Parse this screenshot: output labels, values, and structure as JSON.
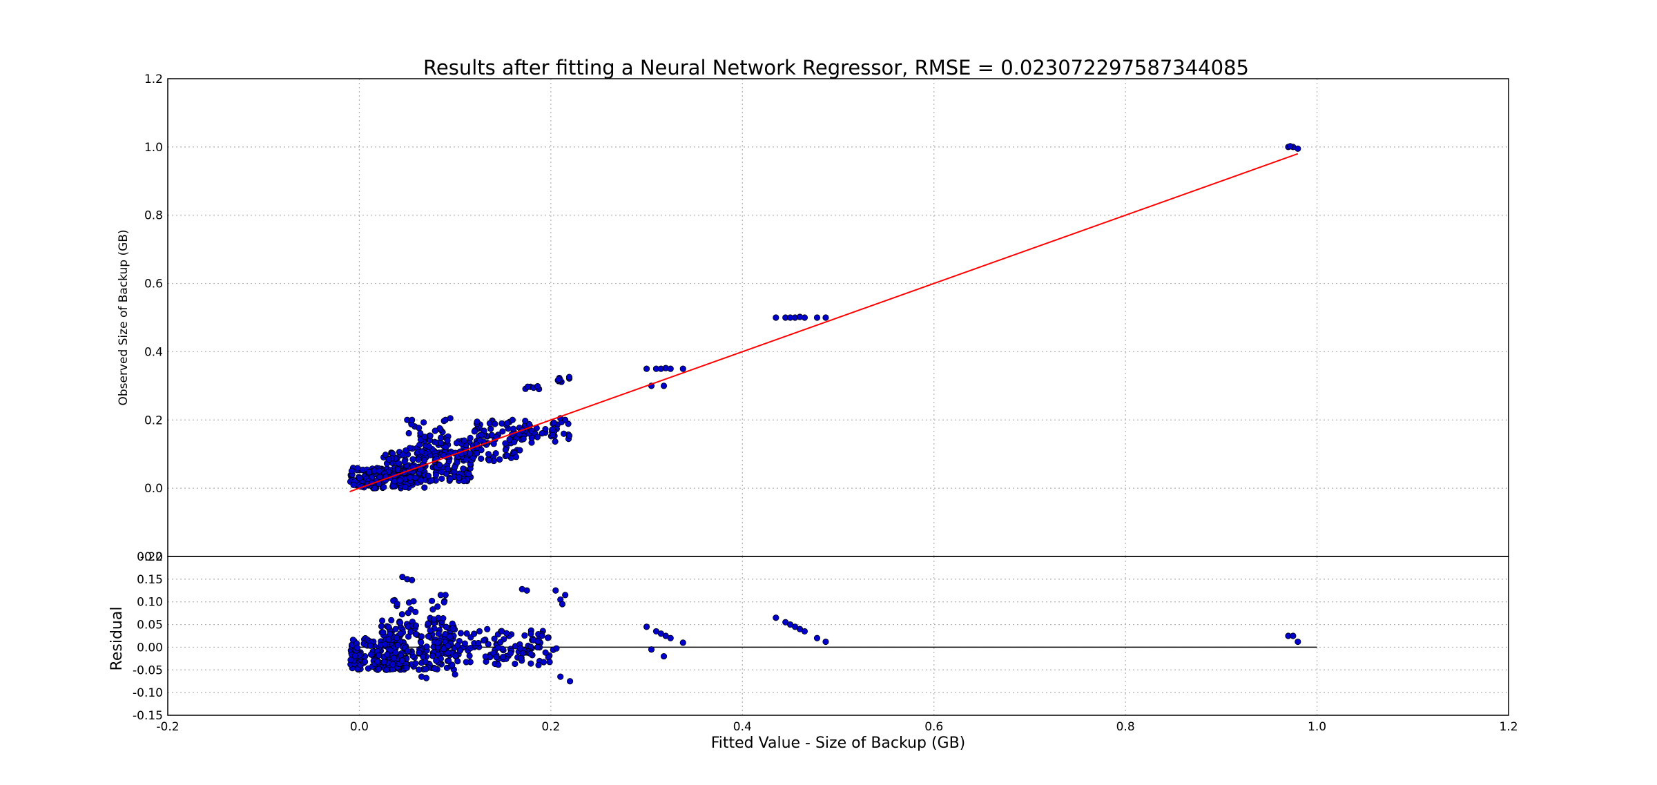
{
  "chart_data": [
    {
      "type": "scatter",
      "title": "Results after fitting a Neural Network Regressor, RMSE = 0.023072297587344085",
      "xlabel": "",
      "ylabel": "Observed Size of Backup (GB)",
      "xlim": [
        -0.2,
        1.2
      ],
      "ylim": [
        -0.2,
        1.2
      ],
      "xticks": [
        "-0.2",
        "0.0",
        "0.2",
        "0.4",
        "0.6",
        "0.8",
        "1.0",
        "1.2"
      ],
      "yticks": [
        "-0.2",
        "0.0",
        "0.2",
        "0.4",
        "0.6",
        "0.8",
        "1.0",
        "1.2"
      ],
      "grid": true,
      "point_color": "#0000cc",
      "fit_line": {
        "x": [
          -0.01,
          0.98
        ],
        "y": [
          -0.01,
          0.98
        ],
        "color": "#ff0000"
      },
      "clusters": [
        {
          "x0": -0.01,
          "x1": 0.07,
          "y0": 0.0,
          "y1": 0.06,
          "count": 180
        },
        {
          "x0": 0.02,
          "x1": 0.12,
          "y0": 0.02,
          "y1": 0.12,
          "count": 170
        },
        {
          "x0": 0.06,
          "x1": 0.17,
          "y0": 0.08,
          "y1": 0.16,
          "count": 110
        },
        {
          "x0": 0.12,
          "x1": 0.21,
          "y0": 0.13,
          "y1": 0.2,
          "count": 70
        },
        {
          "x0": 0.04,
          "x1": 0.09,
          "y0": 0.15,
          "y1": 0.2,
          "count": 14
        },
        {
          "x0": 0.17,
          "x1": 0.19,
          "y0": 0.29,
          "y1": 0.3,
          "count": 6
        },
        {
          "x0": 0.2,
          "x1": 0.22,
          "y0": 0.31,
          "y1": 0.33,
          "count": 8
        },
        {
          "x0": 0.2,
          "x1": 0.22,
          "y0": 0.14,
          "y1": 0.2,
          "count": 10
        }
      ],
      "points": [
        [
          0.3,
          0.35
        ],
        [
          0.305,
          0.3
        ],
        [
          0.31,
          0.35
        ],
        [
          0.315,
          0.35
        ],
        [
          0.32,
          0.352
        ],
        [
          0.325,
          0.35
        ],
        [
          0.318,
          0.3
        ],
        [
          0.338,
          0.35
        ],
        [
          0.435,
          0.5
        ],
        [
          0.445,
          0.5
        ],
        [
          0.45,
          0.5
        ],
        [
          0.455,
          0.5
        ],
        [
          0.46,
          0.502
        ],
        [
          0.465,
          0.5
        ],
        [
          0.478,
          0.5
        ],
        [
          0.487,
          0.5
        ],
        [
          0.97,
          1.0
        ],
        [
          0.975,
          1.0
        ],
        [
          0.98,
          0.995
        ],
        [
          0.972,
          1.002
        ],
        [
          0.05,
          0.2
        ],
        [
          0.055,
          0.2
        ],
        [
          0.09,
          0.2
        ],
        [
          0.095,
          0.205
        ],
        [
          0.16,
          0.2
        ],
        [
          0.21,
          0.205
        ],
        [
          0.215,
          0.2
        ]
      ]
    },
    {
      "type": "scatter",
      "title": "",
      "xlabel": "Fitted Value - Size of Backup (GB)",
      "ylabel": "Residual",
      "xlim": [
        -0.2,
        1.2
      ],
      "ylim": [
        -0.15,
        0.2
      ],
      "xticks": [
        "-0.2",
        "0.0",
        "0.2",
        "0.4",
        "0.6",
        "0.8",
        "1.0",
        "1.2"
      ],
      "yticks": [
        "-0.15",
        "-0.10",
        "-0.05",
        "0.00",
        "0.05",
        "0.10",
        "0.15",
        "0.20"
      ],
      "grid": true,
      "point_color": "#0000cc",
      "zero_line": {
        "x": [
          0.0,
          1.0
        ],
        "y": 0.0,
        "color": "#000000"
      },
      "clusters": [
        {
          "x0": -0.01,
          "x1": 0.05,
          "y0": -0.05,
          "y1": 0.02,
          "count": 150
        },
        {
          "x0": 0.02,
          "x1": 0.1,
          "y0": -0.05,
          "y1": 0.06,
          "count": 170
        },
        {
          "x0": 0.08,
          "x1": 0.2,
          "y0": -0.04,
          "y1": 0.04,
          "count": 120
        },
        {
          "x0": 0.03,
          "x1": 0.09,
          "y0": 0.06,
          "y1": 0.11,
          "count": 20
        },
        {
          "x0": 0.15,
          "x1": 0.22,
          "y0": -0.04,
          "y1": 0.0,
          "count": 20
        }
      ],
      "points": [
        [
          0.045,
          0.155
        ],
        [
          0.05,
          0.15
        ],
        [
          0.055,
          0.148
        ],
        [
          0.17,
          0.128
        ],
        [
          0.175,
          0.125
        ],
        [
          0.205,
          0.125
        ],
        [
          0.21,
          0.105
        ],
        [
          0.215,
          0.115
        ],
        [
          0.212,
          0.095
        ],
        [
          0.085,
          0.115
        ],
        [
          0.09,
          0.115
        ],
        [
          0.21,
          -0.065
        ],
        [
          0.22,
          -0.075
        ],
        [
          0.065,
          -0.065
        ],
        [
          0.07,
          -0.068
        ],
        [
          0.1,
          -0.06
        ],
        [
          0.3,
          0.045
        ],
        [
          0.305,
          -0.005
        ],
        [
          0.31,
          0.035
        ],
        [
          0.315,
          0.03
        ],
        [
          0.32,
          0.025
        ],
        [
          0.325,
          0.02
        ],
        [
          0.318,
          -0.02
        ],
        [
          0.338,
          0.01
        ],
        [
          0.435,
          0.065
        ],
        [
          0.445,
          0.055
        ],
        [
          0.45,
          0.05
        ],
        [
          0.455,
          0.045
        ],
        [
          0.46,
          0.04
        ],
        [
          0.465,
          0.035
        ],
        [
          0.478,
          0.02
        ],
        [
          0.487,
          0.012
        ],
        [
          0.97,
          0.025
        ],
        [
          0.975,
          0.025
        ],
        [
          0.98,
          0.012
        ]
      ]
    }
  ]
}
